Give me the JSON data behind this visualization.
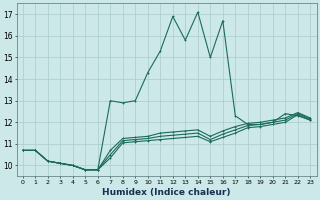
{
  "xlabel": "Humidex (Indice chaleur)",
  "bg_color": "#cce8e8",
  "grid_color": "#aacccc",
  "line_color": "#1a6b5a",
  "xlim": [
    -0.5,
    23.5
  ],
  "ylim": [
    9.5,
    17.5
  ],
  "xticks": [
    0,
    1,
    2,
    3,
    4,
    5,
    6,
    7,
    8,
    9,
    10,
    11,
    12,
    13,
    14,
    15,
    16,
    17,
    18,
    19,
    20,
    21,
    22,
    23
  ],
  "yticks": [
    10,
    11,
    12,
    13,
    14,
    15,
    16,
    17
  ],
  "series": [
    [
      10.7,
      10.7,
      10.2,
      10.1,
      10.0,
      9.8,
      9.8,
      10.35,
      11.05,
      11.1,
      11.15,
      11.2,
      11.25,
      11.3,
      11.35,
      11.1,
      11.3,
      11.5,
      11.75,
      11.8,
      11.9,
      12.0,
      12.35,
      12.1
    ],
    [
      10.7,
      10.7,
      10.2,
      10.1,
      10.0,
      9.8,
      9.8,
      10.5,
      11.15,
      11.2,
      11.25,
      11.35,
      11.4,
      11.45,
      11.5,
      11.2,
      11.45,
      11.65,
      11.85,
      11.9,
      12.0,
      12.1,
      12.4,
      12.15
    ],
    [
      10.7,
      10.7,
      10.2,
      10.1,
      10.0,
      9.8,
      9.8,
      10.7,
      11.25,
      11.3,
      11.35,
      11.5,
      11.55,
      11.6,
      11.65,
      11.35,
      11.6,
      11.8,
      11.95,
      12.0,
      12.1,
      12.2,
      12.45,
      12.2
    ],
    [
      10.7,
      10.7,
      10.2,
      10.1,
      10.0,
      9.8,
      9.8,
      13.0,
      12.9,
      13.0,
      14.3,
      15.3,
      16.9,
      15.8,
      17.1,
      15.0,
      16.7,
      12.3,
      11.9,
      11.9,
      12.0,
      12.4,
      12.3,
      12.1
    ]
  ]
}
